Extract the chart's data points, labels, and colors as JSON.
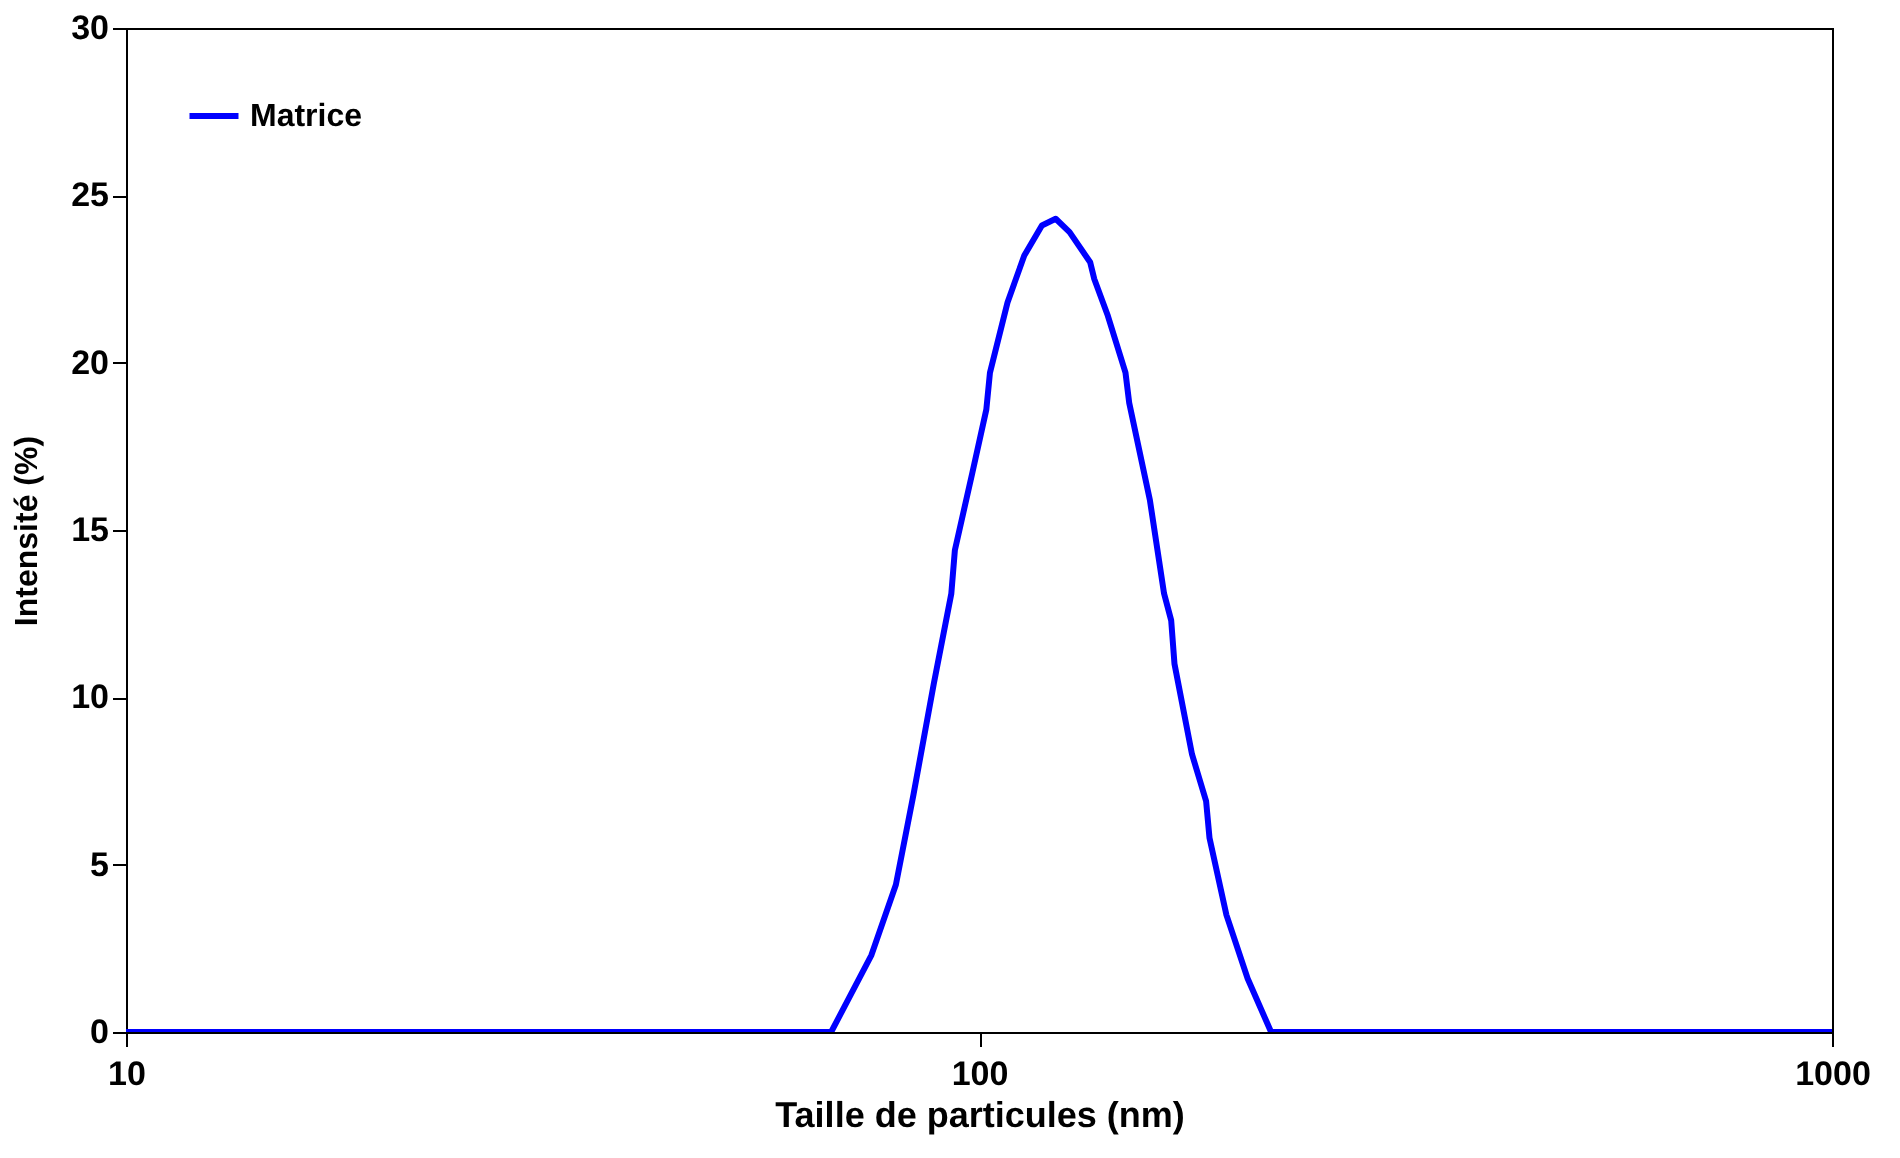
{
  "chart_data": {
    "type": "line",
    "xlabel": "Taille de particules (nm)",
    "ylabel": "Intensité (%)",
    "log": "x",
    "xlim": [
      10,
      1000
    ],
    "xticks": [
      10,
      100,
      1000
    ],
    "ylim": [
      0,
      30
    ],
    "yticks": [
      0,
      5,
      10,
      15,
      20,
      25,
      30
    ],
    "grid": false,
    "legend": "top left",
    "marker": "none",
    "line_style": "solid",
    "series": [
      {
        "name": "Matrice",
        "color": "#0000ff",
        "x": [
          10,
          20,
          40,
          60,
          67.1,
          74.8,
          79.9,
          83.8,
          88.5,
          92.8,
          93.7,
          98.2,
          102,
          103,
          108,
          113,
          118.5,
          123,
          127.7,
          135,
          136.5,
          141.6,
          148.5,
          150,
          158.6,
          164.8,
          168,
          169.5,
          177.7,
          184.6,
          186.3,
          195,
          206.5,
          220,
          300,
          500,
          1000
        ],
        "values": [
          0,
          0,
          0,
          0,
          0,
          2.3,
          4.4,
          7.1,
          10.4,
          13.1,
          14.4,
          16.7,
          18.6,
          19.7,
          21.8,
          23.2,
          24.1,
          24.3,
          23.9,
          23.0,
          22.5,
          21.4,
          19.7,
          18.8,
          15.9,
          13.1,
          12.3,
          11.0,
          8.3,
          6.9,
          5.8,
          3.5,
          1.6,
          0,
          0,
          0,
          0
        ]
      }
    ]
  }
}
